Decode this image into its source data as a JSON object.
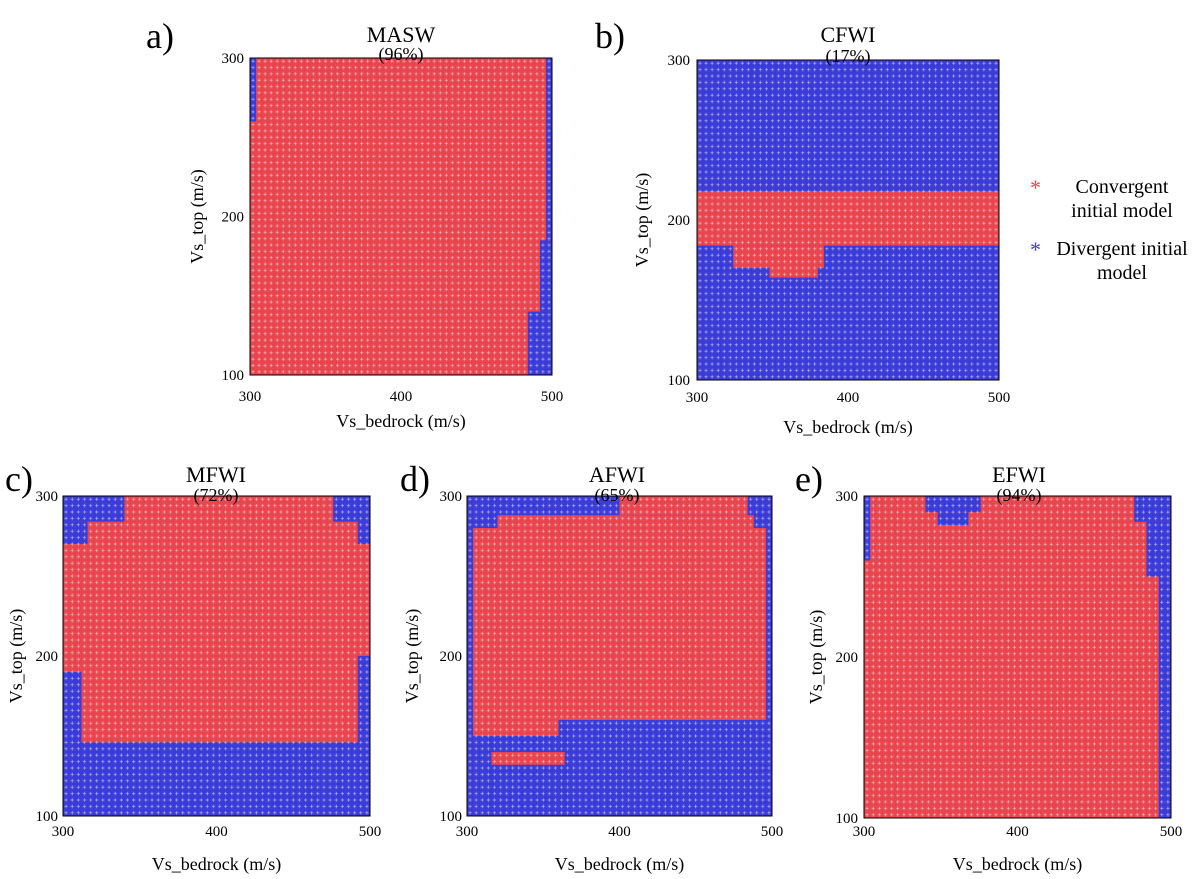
{
  "legend": {
    "convergent_label": "Convergent initial model",
    "divergent_label": "Divergent initial model",
    "convergent_color": "#e8454f",
    "divergent_color": "#3b3bd8"
  },
  "chart_data": [
    {
      "type": "heatmap",
      "panel": "a)",
      "title": "MASW",
      "subtitle": "(96%)",
      "xlabel": "Vs_bedrock (m/s)",
      "ylabel": "Vs_top (m/s)",
      "xlim": [
        300,
        500
      ],
      "ylim": [
        100,
        300
      ],
      "xticks": [
        300,
        400,
        500
      ],
      "yticks": [
        100,
        200,
        300
      ],
      "grid_step": 4,
      "divergent_regions": [
        {
          "x": [
            300,
            304
          ],
          "y": [
            260,
            300
          ]
        },
        {
          "x": [
            496,
            500
          ],
          "y": [
            185,
            300
          ]
        },
        {
          "x": [
            492,
            500
          ],
          "y": [
            140,
            185
          ]
        },
        {
          "x": [
            484,
            500
          ],
          "y": [
            100,
            140
          ]
        }
      ],
      "convergent_regions": []
    },
    {
      "type": "heatmap",
      "panel": "b)",
      "title": "CFWI",
      "subtitle": "(17%)",
      "xlabel": "Vs_bedrock (m/s)",
      "ylabel": "Vs_top (m/s)",
      "xlim": [
        300,
        500
      ],
      "ylim": [
        100,
        300
      ],
      "xticks": [
        300,
        400,
        500
      ],
      "yticks": [
        100,
        200,
        300
      ],
      "grid_step": 4,
      "divergent_regions": [],
      "convergent_regions": [
        {
          "x": [
            300,
            500
          ],
          "y": [
            184,
            218
          ]
        },
        {
          "x": [
            324,
            384
          ],
          "y": [
            170,
            184
          ]
        },
        {
          "x": [
            348,
            380
          ],
          "y": [
            164,
            170
          ]
        }
      ]
    },
    {
      "type": "heatmap",
      "panel": "c)",
      "title": "MFWI",
      "subtitle": "(72%)",
      "xlabel": "Vs_bedrock (m/s)",
      "ylabel": "Vs_top (m/s)",
      "xlim": [
        300,
        500
      ],
      "ylim": [
        100,
        300
      ],
      "xticks": [
        300,
        400,
        500
      ],
      "yticks": [
        100,
        200,
        300
      ],
      "grid_step": 4,
      "divergent_regions": [
        {
          "x": [
            300,
            500
          ],
          "y": [
            100,
            146
          ]
        },
        {
          "x": [
            300,
            312
          ],
          "y": [
            146,
            190
          ]
        },
        {
          "x": [
            492,
            500
          ],
          "y": [
            146,
            200
          ]
        },
        {
          "x": [
            300,
            340
          ],
          "y": [
            284,
            300
          ]
        },
        {
          "x": [
            300,
            316
          ],
          "y": [
            270,
            284
          ]
        },
        {
          "x": [
            476,
            500
          ],
          "y": [
            284,
            300
          ]
        },
        {
          "x": [
            492,
            500
          ],
          "y": [
            270,
            284
          ]
        }
      ],
      "convergent_regions": []
    },
    {
      "type": "heatmap",
      "panel": "d)",
      "title": "AFWI",
      "subtitle": "(65%)",
      "xlabel": "Vs_bedrock (m/s)",
      "ylabel": "Vs_top (m/s)",
      "xlim": [
        300,
        500
      ],
      "ylim": [
        100,
        300
      ],
      "xticks": [
        300,
        400,
        500
      ],
      "yticks": [
        100,
        200,
        300
      ],
      "grid_step": 4,
      "divergent_regions": [],
      "convergent_regions": [
        {
          "x": [
            304,
            496
          ],
          "y": [
            160,
            280
          ]
        },
        {
          "x": [
            320,
            488
          ],
          "y": [
            280,
            288
          ]
        },
        {
          "x": [
            400,
            484
          ],
          "y": [
            288,
            300
          ]
        },
        {
          "x": [
            304,
            360
          ],
          "y": [
            150,
            160
          ]
        },
        {
          "x": [
            316,
            364
          ],
          "y": [
            132,
            140
          ]
        }
      ]
    },
    {
      "type": "heatmap",
      "panel": "e)",
      "title": "EFWI",
      "subtitle": "(94%)",
      "xlabel": "Vs_bedrock (m/s)",
      "ylabel": "Vs_top (m/s)",
      "xlim": [
        300,
        500
      ],
      "ylim": [
        100,
        300
      ],
      "xticks": [
        300,
        400,
        500
      ],
      "yticks": [
        100,
        200,
        300
      ],
      "grid_step": 4,
      "divergent_regions": [
        {
          "x": [
            340,
            376
          ],
          "y": [
            290,
            300
          ]
        },
        {
          "x": [
            348,
            368
          ],
          "y": [
            282,
            290
          ]
        },
        {
          "x": [
            476,
            500
          ],
          "y": [
            284,
            300
          ]
        },
        {
          "x": [
            484,
            500
          ],
          "y": [
            250,
            284
          ]
        },
        {
          "x": [
            492,
            500
          ],
          "y": [
            100,
            250
          ]
        },
        {
          "x": [
            300,
            304
          ],
          "y": [
            260,
            300
          ]
        }
      ],
      "convergent_regions": []
    }
  ]
}
